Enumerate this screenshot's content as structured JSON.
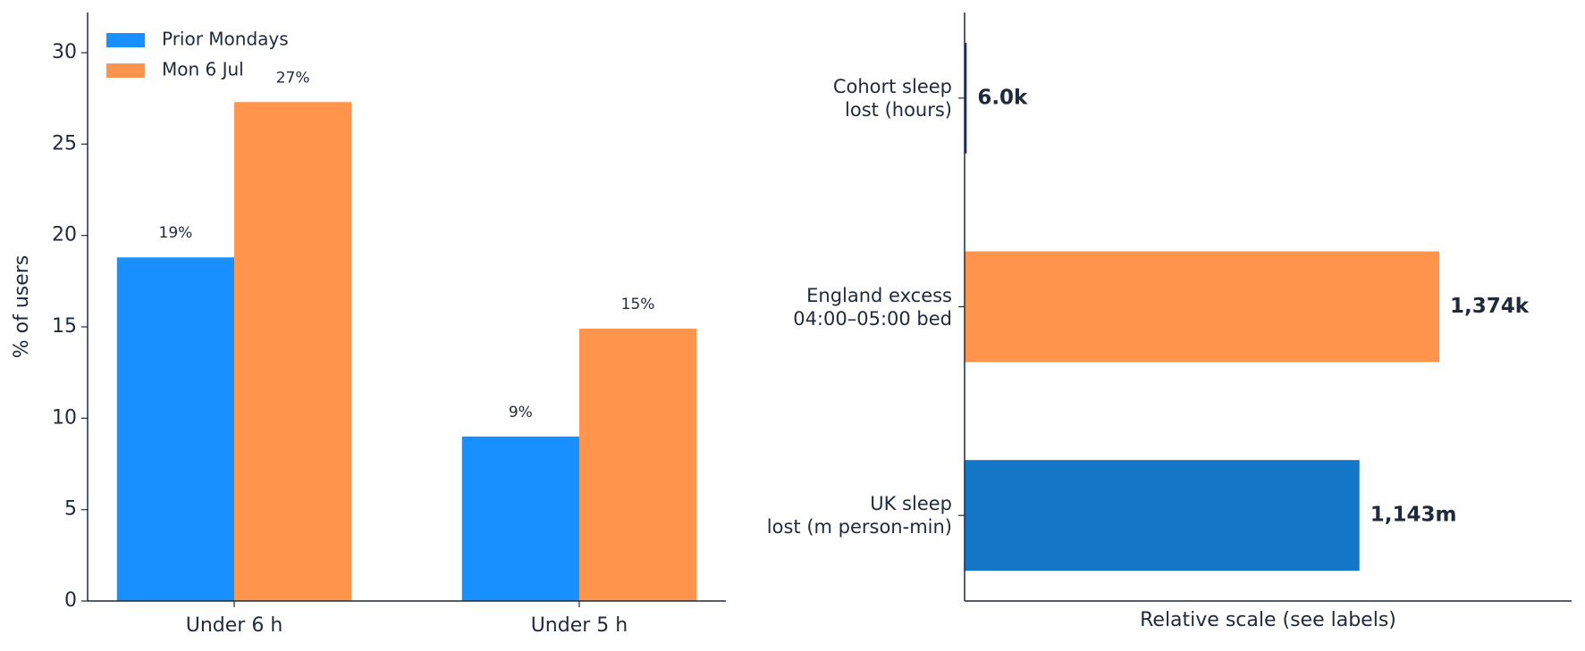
{
  "chart_data": [
    {
      "type": "bar",
      "ylabel": "% of users",
      "categories": [
        "Under 6 h",
        "Under 5 h"
      ],
      "series": [
        {
          "name": "Prior Mondays",
          "color": "#1890ff",
          "values": [
            18.8,
            9.0
          ],
          "value_labels": [
            "19%",
            "9%"
          ]
        },
        {
          "name": "Mon 6 Jul",
          "color": "#ff944d",
          "values": [
            27.3,
            14.9
          ],
          "value_labels": [
            "27%",
            "15%"
          ]
        }
      ],
      "ylim": [
        0,
        32.2
      ],
      "yticks": [
        0,
        5,
        10,
        15,
        20,
        25,
        30
      ],
      "legend": "upper left"
    },
    {
      "type": "barh",
      "xlabel": "Relative scale (see labels)",
      "categories": [
        "Cohort sleep\nlost (hours)",
        "England excess\n04:00–05:00 bed",
        "UK sleep\nlost (m person-min)"
      ],
      "values": [
        6.0,
        1374,
        1143
      ],
      "value_labels": [
        "6.0k",
        "1,374k",
        "1,143m"
      ],
      "colors": [
        "#1a2f6b",
        "#ff944d",
        "#1476c6"
      ],
      "xlim": [
        0,
        1757
      ]
    }
  ]
}
